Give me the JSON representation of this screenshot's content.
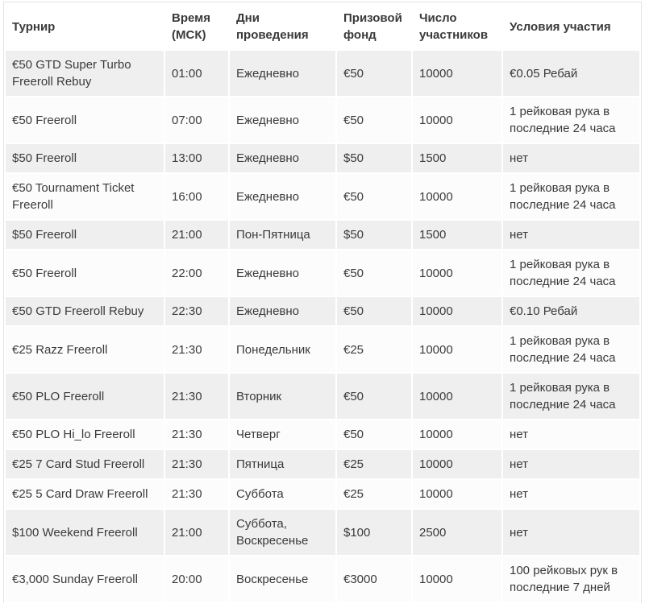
{
  "colors": {
    "stripe_row": "#efefef",
    "plain_row": "#fcfcfc",
    "header_bg": "#ffffff",
    "text": "#3a3a3a",
    "outer_border": "#e4e4e4",
    "cell_gap": "#ffffff"
  },
  "table": {
    "columns": [
      {
        "key": "tournament",
        "label": "Турнир"
      },
      {
        "key": "time-msk",
        "label": "Время (МСК)"
      },
      {
        "key": "days",
        "label": "Дни проведения"
      },
      {
        "key": "prize-fund",
        "label": "Призовой фонд"
      },
      {
        "key": "participants",
        "label": "Число участников"
      },
      {
        "key": "conditions",
        "label": "Условия участия"
      }
    ],
    "rows": [
      [
        "€50 GTD Super Turbo Freeroll Rebuy",
        "01:00",
        "Ежедневно",
        "€50",
        "10000",
        "€0.05 Ребай"
      ],
      [
        "€50 Freeroll",
        "07:00",
        "Ежедневно",
        "€50",
        "10000",
        "1 рейковая рука в последние 24 часа"
      ],
      [
        "$50 Freeroll",
        "13:00",
        "Ежедневно",
        "$50",
        "1500",
        "нет"
      ],
      [
        "€50 Tournament Ticket Freeroll",
        "16:00",
        "Ежедневно",
        "€50",
        "10000",
        "1 рейковая рука в последние 24 часа"
      ],
      [
        "$50 Freeroll",
        "21:00",
        "Пон-Пятница",
        "$50",
        "1500",
        "нет"
      ],
      [
        "€50 Freeroll",
        "22:00",
        "Ежедневно",
        "€50",
        "10000",
        "1 рейковая рука в последние 24 часа"
      ],
      [
        "€50 GTD Freeroll Rebuy",
        "22:30",
        "Ежедневно",
        "€50",
        "10000",
        "€0.10 Ребай"
      ],
      [
        "€25 Razz Freeroll",
        "21:30",
        "Понедельник",
        "€25",
        "10000",
        "1 рейковая рука в последние 24 часа"
      ],
      [
        "€50 PLO Freeroll",
        "21:30",
        "Вторник",
        "€50",
        "10000",
        "1 рейковая рука в последние 24 часа"
      ],
      [
        "€50 PLO Hi_lo Freeroll",
        "21:30",
        "Четверг",
        "€50",
        "10000",
        "нет"
      ],
      [
        "€25 7 Card Stud Freeroll",
        "21:30",
        "Пятница",
        "€25",
        "10000",
        "нет"
      ],
      [
        "€25 5 Card Draw Freeroll",
        "21:30",
        "Суббота",
        "€25",
        "10000",
        "нет"
      ],
      [
        "$100 Weekend Freeroll",
        "21:00",
        "Суббота, Воскресенье",
        "$100",
        "2500",
        "нет"
      ],
      [
        "€3,000 Sunday Freeroll",
        "20:00",
        "Воскресенье",
        "€3000",
        "10000",
        "100 рейковых рук в последние 7 дней"
      ]
    ]
  }
}
